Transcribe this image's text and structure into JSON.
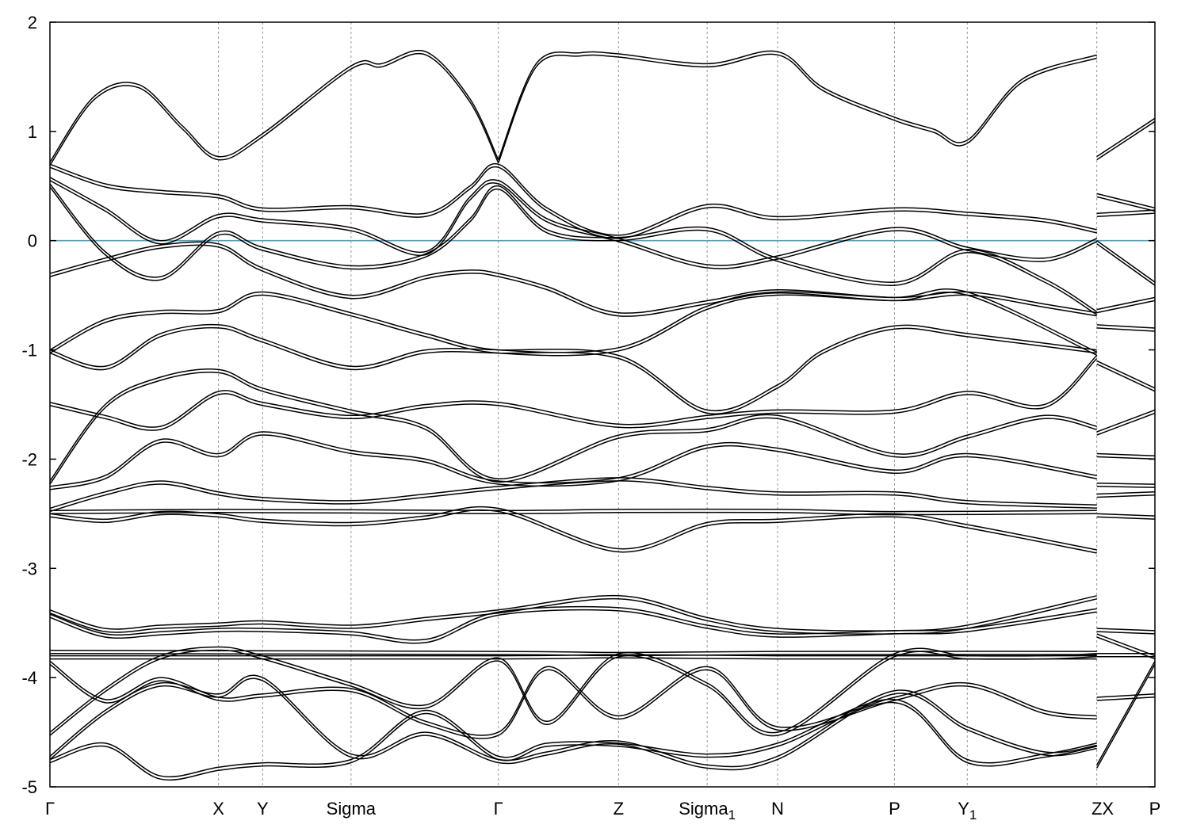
{
  "chart_data": {
    "type": "line",
    "title": "",
    "xlabel": "",
    "ylabel": "",
    "ylim": [
      -5,
      2
    ],
    "y_ticks": [
      2,
      1,
      0,
      -1,
      -2,
      -3,
      -4,
      -5
    ],
    "y_tick_labels": [
      "2",
      "1",
      "0",
      "-1",
      "-2",
      "-3",
      "-4",
      "-5"
    ],
    "kpath_labels": [
      "Γ",
      "X",
      "Y",
      "Sigma",
      "Γ",
      "Z",
      "Sigma₁",
      "N",
      "P",
      "Y₁",
      "Z",
      "X",
      "P"
    ],
    "kpath_positions": [
      0,
      0.1525,
      0.1925,
      0.2725,
      0.4058,
      0.5146,
      0.5948,
      0.6585,
      0.7643,
      0.8302,
      0.9474,
      1.0,
      1.0
    ],
    "segment_breaks": [
      0.9474
    ],
    "fermi_level": 0,
    "fermi_color": "#4aa3c4",
    "line_color": "#000000",
    "grid": "vertical dashed lines at k-points",
    "series": [
      {
        "x": [
          0,
          0.04,
          0.08,
          0.12,
          0.1525,
          0.1925,
          0.2725,
          0.3,
          0.34,
          0.38,
          0.4058
        ],
        "values": [
          0.72,
          1.32,
          1.43,
          1.05,
          0.77,
          0.98,
          1.6,
          1.62,
          1.73,
          1.3,
          0.74
        ]
      },
      {
        "x": [
          0.4058,
          0.44,
          0.48,
          0.5146,
          0.5948,
          0.6585,
          0.7,
          0.7643,
          0.8,
          0.8302,
          0.88,
          0.9474
        ],
        "values": [
          0.74,
          1.62,
          1.72,
          1.71,
          1.62,
          1.73,
          1.4,
          1.13,
          1.02,
          0.92,
          1.48,
          1.7
        ]
      },
      {
        "x": [
          0,
          0.05,
          0.1,
          0.1525,
          0.1925,
          0.2725,
          0.34,
          0.38,
          0.4058,
          0.45,
          0.5146,
          0.5948,
          0.6585,
          0.7643,
          0.8302,
          0.9,
          0.9474
        ],
        "values": [
          0.7,
          0.52,
          0.46,
          0.42,
          0.3,
          0.32,
          0.25,
          0.5,
          0.7,
          0.3,
          0.05,
          0.33,
          0.22,
          0.3,
          0.26,
          0.2,
          0.1
        ]
      },
      {
        "x": [
          0,
          0.05,
          0.1,
          0.1525,
          0.1925,
          0.2725,
          0.34,
          0.38,
          0.4058,
          0.45,
          0.5146,
          0.5948,
          0.6585,
          0.7643,
          0.8302,
          0.9,
          0.9474
        ],
        "values": [
          0.58,
          0.3,
          0.0,
          0.24,
          0.2,
          0.12,
          -0.1,
          0.4,
          0.55,
          0.2,
          0.02,
          -0.22,
          -0.14,
          0.12,
          -0.06,
          -0.16,
          0.02
        ]
      },
      {
        "x": [
          0,
          0.05,
          0.1,
          0.1525,
          0.1925,
          0.2725,
          0.34,
          0.38,
          0.4058,
          0.45,
          0.5146,
          0.5948,
          0.6585,
          0.7643,
          0.8302,
          0.9,
          0.9474
        ],
        "values": [
          0.52,
          -0.1,
          -0.33,
          0.08,
          -0.06,
          -0.23,
          -0.12,
          0.2,
          0.5,
          0.1,
          0.03,
          0.12,
          -0.16,
          -0.38,
          -0.08,
          -0.35,
          -0.65
        ]
      },
      {
        "x": [
          0,
          0.05,
          0.1,
          0.1525,
          0.1925,
          0.2725,
          0.34,
          0.38,
          0.4058,
          0.45,
          0.5146,
          0.5948,
          0.6585,
          0.7643,
          0.8302,
          0.9,
          0.9474
        ],
        "values": [
          -0.3,
          -0.16,
          -0.04,
          -0.03,
          -0.25,
          -0.5,
          -0.32,
          -0.27,
          -0.3,
          -0.42,
          -0.66,
          -0.55,
          -0.45,
          -0.52,
          -0.47,
          -0.58,
          -0.66
        ]
      },
      {
        "x": [
          0,
          0.05,
          0.1,
          0.1525,
          0.1925,
          0.2725,
          0.34,
          0.4058,
          0.5146,
          0.5948,
          0.6585,
          0.7643,
          0.8302,
          0.9474
        ],
        "values": [
          -1.0,
          -0.72,
          -0.64,
          -0.63,
          -0.47,
          -0.66,
          -0.85,
          -1.0,
          -0.98,
          -0.6,
          -0.47,
          -0.52,
          -0.47,
          -1.02
        ]
      },
      {
        "x": [
          0,
          0.05,
          0.1,
          0.1525,
          0.1925,
          0.2725,
          0.34,
          0.4058,
          0.5146,
          0.5948,
          0.6585,
          0.7,
          0.7643,
          0.8302,
          0.9474
        ],
        "values": [
          -1.0,
          -1.15,
          -0.85,
          -0.77,
          -0.9,
          -1.15,
          -1.0,
          -1.0,
          -1.05,
          -1.55,
          -1.32,
          -1.0,
          -0.78,
          -0.85,
          -1.0
        ]
      },
      {
        "x": [
          0,
          0.05,
          0.1,
          0.1525,
          0.1925,
          0.2725,
          0.34,
          0.4058,
          0.5146,
          0.5948,
          0.6585,
          0.7643,
          0.8302,
          0.9,
          0.9474
        ],
        "values": [
          -1.48,
          -1.6,
          -1.7,
          -1.38,
          -1.48,
          -1.6,
          -1.5,
          -1.48,
          -1.68,
          -1.6,
          -1.55,
          -1.55,
          -1.38,
          -1.5,
          -1.05
        ]
      },
      {
        "x": [
          0,
          0.05,
          0.1,
          0.1525,
          0.1925,
          0.2725,
          0.34,
          0.4058,
          0.5146,
          0.5948,
          0.6585,
          0.7643,
          0.8302,
          0.9,
          0.9474
        ],
        "values": [
          -2.2,
          -1.5,
          -1.25,
          -1.18,
          -1.35,
          -1.55,
          -1.7,
          -2.18,
          -1.78,
          -1.72,
          -1.6,
          -1.95,
          -1.78,
          -1.6,
          -1.7
        ]
      },
      {
        "x": [
          0,
          0.05,
          0.1,
          0.1525,
          0.1925,
          0.2725,
          0.34,
          0.4058,
          0.5146,
          0.5948,
          0.6585,
          0.7643,
          0.8302,
          0.9474
        ],
        "values": [
          -2.25,
          -2.15,
          -1.82,
          -1.95,
          -1.75,
          -1.92,
          -2.0,
          -2.2,
          -2.17,
          -1.87,
          -1.9,
          -2.1,
          -1.95,
          -2.15
        ]
      },
      {
        "x": [
          0,
          0.05,
          0.1,
          0.1525,
          0.1925,
          0.2725,
          0.34,
          0.4058,
          0.5146,
          0.5948,
          0.6585,
          0.7643,
          0.8302,
          0.9474
        ],
        "values": [
          -2.45,
          -2.3,
          -2.2,
          -2.3,
          -2.35,
          -2.38,
          -2.32,
          -2.25,
          -2.17,
          -2.25,
          -2.3,
          -2.3,
          -2.38,
          -2.42
        ]
      },
      {
        "x": [
          0,
          0.05,
          0.1,
          0.1525,
          0.1925,
          0.2725,
          0.34,
          0.4058,
          0.5146,
          0.5948,
          0.6585,
          0.7643,
          0.8302,
          0.9474
        ],
        "values": [
          -2.5,
          -2.55,
          -2.48,
          -2.5,
          -2.55,
          -2.58,
          -2.52,
          -2.45,
          -2.82,
          -2.58,
          -2.55,
          -2.5,
          -2.6,
          -2.83
        ]
      },
      {
        "x": [
          0,
          0.1525,
          0.4058,
          0.5146,
          0.6585,
          0.7643,
          0.9474
        ],
        "values": [
          -2.47,
          -2.46,
          -2.47,
          -2.46,
          -2.46,
          -2.48,
          -2.47
        ]
      },
      {
        "x": [
          0,
          0.05,
          0.1,
          0.1525,
          0.1925,
          0.2725,
          0.34,
          0.4058,
          0.5146,
          0.5948,
          0.6585,
          0.7643,
          0.8302,
          0.9474
        ],
        "values": [
          -3.38,
          -3.55,
          -3.52,
          -3.5,
          -3.48,
          -3.52,
          -3.45,
          -3.38,
          -3.25,
          -3.45,
          -3.55,
          -3.57,
          -3.52,
          -3.25
        ]
      },
      {
        "x": [
          0,
          0.05,
          0.1,
          0.1525,
          0.1925,
          0.2725,
          0.34,
          0.4058,
          0.5146,
          0.5948,
          0.6585,
          0.7643,
          0.8302,
          0.9474
        ],
        "values": [
          -3.42,
          -3.6,
          -3.58,
          -3.55,
          -3.55,
          -3.58,
          -3.65,
          -3.4,
          -3.36,
          -3.52,
          -3.6,
          -3.57,
          -3.55,
          -3.37
        ]
      },
      {
        "x": [
          0,
          0.4058,
          0.5146,
          0.6585,
          0.9474
        ],
        "values": [
          -3.8,
          -3.8,
          -3.79,
          -3.8,
          -3.8
        ]
      },
      {
        "x": [
          0,
          0.4058,
          0.5146,
          0.6585,
          0.9474
        ],
        "values": [
          -3.75,
          -3.76,
          -3.77,
          -3.76,
          -3.76
        ]
      },
      {
        "x": [
          0,
          0.05,
          0.1,
          0.1525,
          0.1925,
          0.2725,
          0.34,
          0.4058,
          0.45,
          0.5146,
          0.5948,
          0.6585,
          0.7643,
          0.8302,
          0.9,
          0.9474
        ],
        "values": [
          -4.5,
          -4.1,
          -3.8,
          -3.72,
          -3.8,
          -4.05,
          -4.25,
          -3.82,
          -4.4,
          -3.78,
          -4.05,
          -4.5,
          -3.78,
          -3.8,
          -3.8,
          -3.78
        ]
      },
      {
        "x": [
          0,
          0.05,
          0.1,
          0.1525,
          0.1925,
          0.2725,
          0.34,
          0.4058,
          0.45,
          0.5146,
          0.5948,
          0.6585,
          0.7643,
          0.8302,
          0.9,
          0.9474
        ],
        "values": [
          -3.85,
          -4.2,
          -4.0,
          -4.18,
          -4.15,
          -4.1,
          -4.4,
          -4.5,
          -3.9,
          -4.35,
          -3.9,
          -4.45,
          -4.18,
          -4.05,
          -4.3,
          -4.35
        ]
      },
      {
        "x": [
          0,
          0.05,
          0.1,
          0.1525,
          0.1925,
          0.2725,
          0.34,
          0.4058,
          0.45,
          0.5146,
          0.5948,
          0.6585,
          0.7643,
          0.8302,
          0.9,
          0.9474
        ],
        "values": [
          -4.75,
          -4.6,
          -4.9,
          -4.82,
          -4.78,
          -4.75,
          -4.3,
          -4.72,
          -4.6,
          -4.6,
          -4.7,
          -4.6,
          -4.2,
          -4.75,
          -4.7,
          -4.6
        ]
      },
      {
        "x": [
          0,
          0.05,
          0.1,
          0.1525,
          0.1925,
          0.2725,
          0.34,
          0.4058,
          0.45,
          0.5146,
          0.5948,
          0.6585,
          0.7643,
          0.8302,
          0.9,
          0.9474
        ],
        "values": [
          -4.72,
          -4.3,
          -4.05,
          -4.15,
          -4.0,
          -4.7,
          -4.5,
          -4.75,
          -4.68,
          -4.58,
          -4.8,
          -4.72,
          -4.12,
          -4.45,
          -4.68,
          -4.62
        ]
      },
      {
        "x": [
          0.9474,
          1.0
        ],
        "values": [
          0.77,
          1.12
        ]
      },
      {
        "x": [
          0.9474,
          1.0
        ],
        "values": [
          0.43,
          0.3
        ]
      },
      {
        "x": [
          0.9474,
          1.0
        ],
        "values": [
          0.25,
          0.28
        ]
      },
      {
        "x": [
          0.9474,
          1.0
        ],
        "values": [
          0.0,
          -0.38
        ]
      },
      {
        "x": [
          0.9474,
          1.0
        ],
        "values": [
          -0.63,
          -0.52
        ]
      },
      {
        "x": [
          0.9474,
          1.0
        ],
        "values": [
          -0.77,
          -0.8
        ]
      },
      {
        "x": [
          0.9474,
          1.0
        ],
        "values": [
          -1.1,
          -1.35
        ]
      },
      {
        "x": [
          0.9474,
          1.0
        ],
        "values": [
          -1.75,
          -1.55
        ]
      },
      {
        "x": [
          0.9474,
          1.0
        ],
        "values": [
          -1.95,
          -1.97
        ]
      },
      {
        "x": [
          0.9474,
          1.0
        ],
        "values": [
          -2.22,
          -2.23
        ]
      },
      {
        "x": [
          0.9474,
          1.0
        ],
        "values": [
          -2.32,
          -2.3
        ]
      },
      {
        "x": [
          0.9474,
          1.0
        ],
        "values": [
          -2.5,
          -2.52
        ]
      },
      {
        "x": [
          0.9474,
          1.0
        ],
        "values": [
          -3.55,
          -3.57
        ]
      },
      {
        "x": [
          0.9474,
          1.0
        ],
        "values": [
          -3.6,
          -3.8
        ]
      },
      {
        "x": [
          0.9474,
          1.0
        ],
        "values": [
          -3.78,
          -3.78
        ]
      },
      {
        "x": [
          0.9474,
          1.0
        ],
        "values": [
          -4.18,
          -4.15
        ]
      },
      {
        "x": [
          0.9474,
          1.0
        ],
        "values": [
          -4.8,
          -3.85
        ]
      }
    ]
  }
}
